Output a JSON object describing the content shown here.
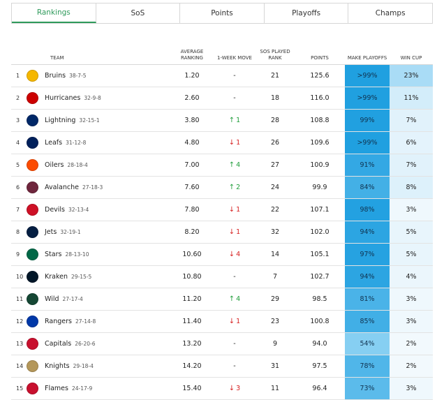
{
  "tabs": [
    {
      "label": "Rankings",
      "active": true
    },
    {
      "label": "SoS",
      "active": false
    },
    {
      "label": "Points",
      "active": false
    },
    {
      "label": "Playoffs",
      "active": false
    },
    {
      "label": "Champs",
      "active": false
    }
  ],
  "table": {
    "headers": {
      "rank": "",
      "team": "TEAM",
      "avg_rank": "AVERAGE RANKING",
      "move": "1-WEEK MOVE",
      "sos": "SOS PLAYED RANK",
      "points": "POINTS",
      "playoffs": "MAKE PLAYOFFS",
      "cup": "WIN CUP"
    },
    "rows": [
      {
        "rank": "1",
        "team": "Bruins",
        "record": "38-7-5",
        "logo_color": "#f5b700",
        "avg": "1.20",
        "move_dir": "none",
        "move": "-",
        "sos": "21",
        "points": "125.6",
        "playoffs": ">99%",
        "playoffs_pct": 99.5,
        "cup": "23%",
        "cup_pct": 23
      },
      {
        "rank": "2",
        "team": "Hurricanes",
        "record": "32-9-8",
        "logo_color": "#cc0000",
        "avg": "2.60",
        "move_dir": "none",
        "move": "-",
        "sos": "18",
        "points": "116.0",
        "playoffs": ">99%",
        "playoffs_pct": 99.5,
        "cup": "11%",
        "cup_pct": 11
      },
      {
        "rank": "3",
        "team": "Lightning",
        "record": "32-15-1",
        "logo_color": "#002868",
        "avg": "3.80",
        "move_dir": "up",
        "move": "1",
        "sos": "28",
        "points": "108.8",
        "playoffs": "99%",
        "playoffs_pct": 99,
        "cup": "7%",
        "cup_pct": 7
      },
      {
        "rank": "4",
        "team": "Leafs",
        "record": "31-12-8",
        "logo_color": "#00205b",
        "avg": "4.80",
        "move_dir": "down",
        "move": "1",
        "sos": "26",
        "points": "109.6",
        "playoffs": ">99%",
        "playoffs_pct": 99.5,
        "cup": "6%",
        "cup_pct": 6
      },
      {
        "rank": "5",
        "team": "Oilers",
        "record": "28-18-4",
        "logo_color": "#fc4c02",
        "avg": "7.00",
        "move_dir": "up",
        "move": "4",
        "sos": "27",
        "points": "100.9",
        "playoffs": "91%",
        "playoffs_pct": 91,
        "cup": "7%",
        "cup_pct": 7
      },
      {
        "rank": "6",
        "team": "Avalanche",
        "record": "27-18-3",
        "logo_color": "#6f263d",
        "avg": "7.60",
        "move_dir": "up",
        "move": "2",
        "sos": "24",
        "points": "99.9",
        "playoffs": "84%",
        "playoffs_pct": 84,
        "cup": "8%",
        "cup_pct": 8
      },
      {
        "rank": "7",
        "team": "Devils",
        "record": "32-13-4",
        "logo_color": "#ce1126",
        "avg": "7.80",
        "move_dir": "down",
        "move": "1",
        "sos": "22",
        "points": "107.1",
        "playoffs": "98%",
        "playoffs_pct": 98,
        "cup": "3%",
        "cup_pct": 3
      },
      {
        "rank": "8",
        "team": "Jets",
        "record": "32-19-1",
        "logo_color": "#041e42",
        "avg": "8.20",
        "move_dir": "down",
        "move": "1",
        "sos": "32",
        "points": "102.0",
        "playoffs": "94%",
        "playoffs_pct": 94,
        "cup": "5%",
        "cup_pct": 5
      },
      {
        "rank": "9",
        "team": "Stars",
        "record": "28-13-10",
        "logo_color": "#006847",
        "avg": "10.60",
        "move_dir": "down",
        "move": "4",
        "sos": "14",
        "points": "105.1",
        "playoffs": "97%",
        "playoffs_pct": 97,
        "cup": "5%",
        "cup_pct": 5
      },
      {
        "rank": "10",
        "team": "Kraken",
        "record": "29-15-5",
        "logo_color": "#001628",
        "avg": "10.80",
        "move_dir": "none",
        "move": "-",
        "sos": "7",
        "points": "102.7",
        "playoffs": "94%",
        "playoffs_pct": 94,
        "cup": "4%",
        "cup_pct": 4
      },
      {
        "rank": "11",
        "team": "Wild",
        "record": "27-17-4",
        "logo_color": "#154734",
        "avg": "11.20",
        "move_dir": "up",
        "move": "4",
        "sos": "29",
        "points": "98.5",
        "playoffs": "81%",
        "playoffs_pct": 81,
        "cup": "3%",
        "cup_pct": 3
      },
      {
        "rank": "12",
        "team": "Rangers",
        "record": "27-14-8",
        "logo_color": "#0038a8",
        "avg": "11.40",
        "move_dir": "down",
        "move": "1",
        "sos": "23",
        "points": "100.8",
        "playoffs": "85%",
        "playoffs_pct": 85,
        "cup": "3%",
        "cup_pct": 3
      },
      {
        "rank": "13",
        "team": "Capitals",
        "record": "26-20-6",
        "logo_color": "#c8102e",
        "avg": "13.20",
        "move_dir": "none",
        "move": "-",
        "sos": "9",
        "points": "94.0",
        "playoffs": "54%",
        "playoffs_pct": 54,
        "cup": "2%",
        "cup_pct": 2
      },
      {
        "rank": "14",
        "team": "Knights",
        "record": "29-18-4",
        "logo_color": "#b4975a",
        "avg": "14.20",
        "move_dir": "none",
        "move": "-",
        "sos": "31",
        "points": "97.5",
        "playoffs": "78%",
        "playoffs_pct": 78,
        "cup": "2%",
        "cup_pct": 2
      },
      {
        "rank": "15",
        "team": "Flames",
        "record": "24-17-9",
        "logo_color": "#c8102e",
        "avg": "15.40",
        "move_dir": "down",
        "move": "3",
        "sos": "11",
        "points": "96.4",
        "playoffs": "73%",
        "playoffs_pct": 73,
        "cup": "3%",
        "cup_pct": 3
      }
    ]
  },
  "colors": {
    "tab_active": "#2e9a5b",
    "move_up": "#1f9d3a",
    "move_down": "#d62020",
    "playoffs_high": "#1f9fe0",
    "playoffs_low": "#8fd3f4",
    "cup_high": "#a9dcf6",
    "cup_low": "#f2f9fd"
  }
}
